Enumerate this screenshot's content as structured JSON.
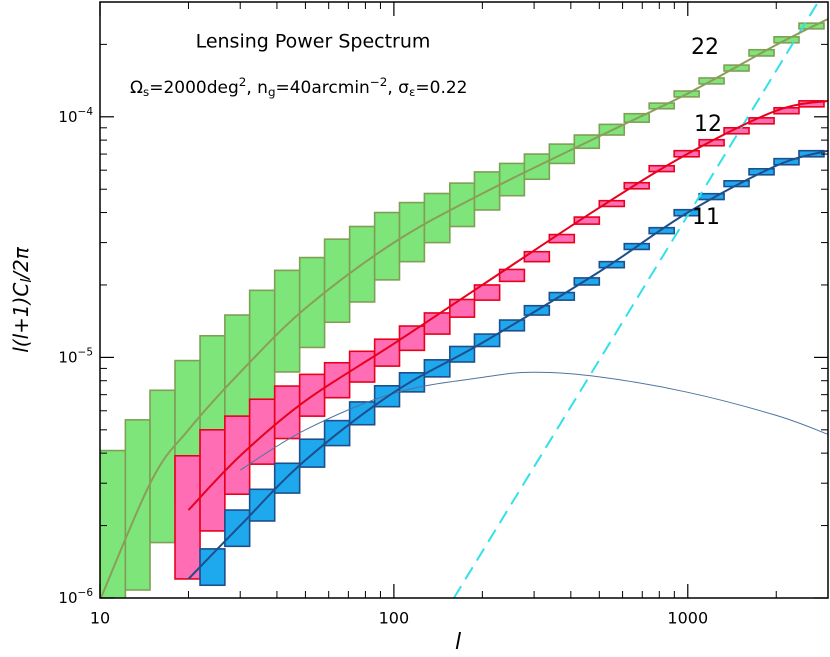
{
  "chart_data": {
    "type": "band-boxes",
    "title": "Lensing Power Spectrum",
    "subtitle": [
      {
        "text": "Ω"
      },
      {
        "sub": "s"
      },
      {
        "text": "=2000deg"
      },
      {
        "sup": "2"
      },
      {
        "text": ", n"
      },
      {
        "sub": "g"
      },
      {
        "text": "=40arcmin"
      },
      {
        "sup": "−2"
      },
      {
        "text": ", σ"
      },
      {
        "sub": "ε"
      },
      {
        "text": "=0.22"
      }
    ],
    "x_label": "l",
    "y_label": [
      {
        "text": "l(l+1)C"
      },
      {
        "sub": "l"
      },
      {
        "text": "/2π"
      }
    ],
    "log_x": true,
    "log_y": true,
    "xlim": [
      10,
      3000
    ],
    "ylim": [
      1e-06,
      0.0003
    ],
    "xticks": [
      10,
      100,
      1000
    ],
    "xminorticks": [
      20,
      30,
      40,
      50,
      60,
      70,
      80,
      90,
      200,
      300,
      400,
      500,
      600,
      700,
      800,
      900,
      2000,
      3000
    ],
    "yticks": [
      {
        "value": 1e-06,
        "label": "10",
        "exponent": "−6"
      },
      {
        "value": 1e-05,
        "label": "10",
        "exponent": "−5"
      },
      {
        "value": 0.0001,
        "label": "10",
        "exponent": "−4"
      }
    ],
    "yminorticks": [
      2e-06,
      3e-06,
      4e-06,
      5e-06,
      6e-06,
      7e-06,
      8e-06,
      9e-06,
      2e-05,
      3e-05,
      4e-05,
      5e-05,
      6e-05,
      7e-05,
      8e-05,
      9e-05,
      0.0002,
      0.0003
    ],
    "grid": false,
    "bins": [
      10,
      12.2,
      14.8,
      18,
      21.9,
      26.6,
      32.3,
      39.3,
      47.8,
      58.1,
      70.7,
      86,
      104.5,
      127,
      155,
      188,
      229,
      278,
      338,
      411,
      500,
      608,
      739,
      899,
      1093,
      1329,
      1616,
      1966,
      2390,
      2907
    ],
    "model_l": [
      10,
      15,
      20,
      30,
      50,
      100,
      200,
      500,
      1000,
      2000,
      3000
    ],
    "series": [
      {
        "name": "22",
        "color": "#8a9e5a",
        "fill": "#7ee57a",
        "edge": "#7f9f55",
        "label_color": "#7f9f55",
        "upper": [
          4.1e-06,
          5.5e-06,
          7.3e-06,
          9.7e-06,
          1.23e-05,
          1.5e-05,
          1.9e-05,
          2.3e-05,
          2.6e-05,
          3.1e-05,
          3.5e-05,
          4e-05,
          4.4e-05,
          4.8e-05,
          5.3e-05,
          5.9e-05,
          6.4e-05,
          7e-05,
          7.7e-05,
          8.4e-05,
          9.3e-05,
          0.000103,
          0.000114,
          0.000128,
          0.000145,
          0.000164,
          0.00019,
          0.000215,
          0.000245
        ],
        "lower": [
          6.1e-07,
          1.08e-06,
          1.7e-06,
          2.6e-06,
          3.6e-06,
          4.9e-06,
          6.6e-06,
          8.7e-06,
          1.1e-05,
          1.4e-05,
          1.7e-05,
          2.1e-05,
          2.5e-05,
          3e-05,
          3.5e-05,
          4.1e-05,
          4.7e-05,
          5.5e-05,
          6.4e-05,
          7.4e-05,
          8.4e-05,
          9.5e-05,
          0.000108,
          0.000121,
          0.000137,
          0.000155,
          0.000179,
          0.000203,
          0.000232
        ],
        "model": [
          9.8e-07,
          3.09e-06,
          5e-06,
          8.67e-06,
          1.6e-05,
          3e-05,
          4.8e-05,
          8.3e-05,
          0.000125,
          0.000199,
          0.000255
        ]
      },
      {
        "name": "12",
        "color": "#e8001c",
        "fill": "#ff6eb4",
        "edge": "#e8001c",
        "label_color": "#e8001c",
        "upper": [
          null,
          null,
          null,
          3.9e-06,
          5e-06,
          5.7e-06,
          6.7e-06,
          7.6e-06,
          8.5e-06,
          9.5e-06,
          1.06e-05,
          1.19e-05,
          1.35e-05,
          1.53e-05,
          1.74e-05,
          2e-05,
          2.32e-05,
          2.75e-05,
          3.24e-05,
          3.83e-05,
          4.48e-05,
          5.32e-05,
          6.26e-05,
          7.23e-05,
          8.03e-05,
          9e-05,
          9.9e-05,
          0.000109,
          0.0001165
        ],
        "lower": [
          null,
          null,
          null,
          1.2e-06,
          1.9e-06,
          2.7e-06,
          3.6e-06,
          4.6e-06,
          5.7e-06,
          6.8e-06,
          7.9e-06,
          9.2e-06,
          1.07e-05,
          1.25e-05,
          1.47e-05,
          1.73e-05,
          2.07e-05,
          2.5e-05,
          3e-05,
          3.58e-05,
          4.24e-05,
          5.02e-05,
          5.92e-05,
          6.82e-05,
          7.58e-05,
          8.5e-05,
          9.35e-05,
          0.000103,
          0.00011
        ],
        "model": [
          null,
          null,
          2.32e-06,
          3.9e-06,
          6.6e-06,
          1.14e-05,
          2e-05,
          4.19e-05,
          7.02e-05,
          0.000106,
          0.0001165
        ]
      },
      {
        "name": "11",
        "color": "#1f4e8c",
        "fill": "#1ea8ee",
        "edge": "#1c4f8c",
        "label_color": "#6b8cb4",
        "upper": [
          null,
          null,
          null,
          null,
          1.6e-06,
          2.32e-06,
          2.83e-06,
          3.63e-06,
          4.57e-06,
          5.46e-06,
          6.53e-06,
          7.62e-06,
          8.63e-06,
          9.77e-06,
          1.11e-05,
          1.25e-05,
          1.43e-05,
          1.64e-05,
          1.86e-05,
          2.14e-05,
          2.5e-05,
          2.97e-05,
          3.46e-05,
          4.11e-05,
          4.79e-05,
          5.42e-05,
          6.08e-05,
          6.7e-05,
          7.23e-05
        ],
        "lower": [
          null,
          null,
          null,
          null,
          1.13e-06,
          1.64e-06,
          2.09e-06,
          2.73e-06,
          3.5e-06,
          4.3e-06,
          5.25e-06,
          6.24e-06,
          7.19e-06,
          8.3e-06,
          9.57e-06,
          1.11e-05,
          1.29e-05,
          1.5e-05,
          1.73e-05,
          2e-05,
          2.36e-05,
          2.81e-05,
          3.27e-05,
          3.88e-05,
          4.53e-05,
          5.13e-05,
          5.74e-05,
          6.32e-05,
          6.82e-05
        ],
        "model": [
          null,
          null,
          1.2e-06,
          2e-06,
          3.74e-06,
          7.16e-06,
          1.15e-05,
          2.27e-05,
          4e-05,
          6.26e-05,
          7.23e-05
        ]
      }
    ],
    "lines": [
      {
        "color": "#4f74a0",
        "dashed": false,
        "x": [
          30,
          50,
          100,
          200,
          300,
          500,
          1000,
          2000,
          3000
        ],
        "values": [
          3.4e-06,
          5e-06,
          7.1e-06,
          8.26e-06,
          8.67e-06,
          8.3e-06,
          7.16e-06,
          5.74e-06,
          4.79e-06
        ]
      },
      {
        "color": "#33e0ea",
        "dashed": true,
        "x": [
          160,
          3000
        ],
        "values": [
          1e-06,
          0.00035
        ]
      }
    ]
  }
}
